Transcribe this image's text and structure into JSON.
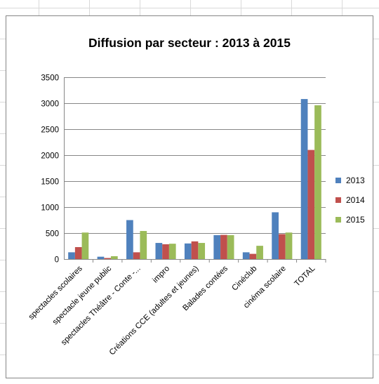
{
  "chart_data": {
    "type": "bar",
    "title": "Diffusion par secteur : 2013 à 2015",
    "xlabel": "",
    "ylabel": "",
    "ylim": [
      0,
      3500
    ],
    "yticks": [
      0,
      500,
      1000,
      1500,
      2000,
      2500,
      3000,
      3500
    ],
    "grid": true,
    "legend_position": "right",
    "categories": [
      "spectacles scolaires",
      "spectacle jeune public",
      "spectacles Théâtre - Conte -...",
      "impro",
      "Créations CCE (adultes et jeunes)",
      "Balades contées",
      "Cinéclub",
      "cinéma scolaire",
      "TOTAL"
    ],
    "series": [
      {
        "name": "2013",
        "color": "#4F81BD",
        "values": [
          130,
          45,
          750,
          310,
          300,
          460,
          130,
          900,
          3080
        ]
      },
      {
        "name": "2014",
        "color": "#C0504D",
        "values": [
          230,
          20,
          130,
          285,
          340,
          465,
          100,
          480,
          2100
        ]
      },
      {
        "name": "2015",
        "color": "#9BBB59",
        "values": [
          510,
          55,
          540,
          295,
          310,
          460,
          255,
          510,
          2960
        ]
      }
    ]
  }
}
